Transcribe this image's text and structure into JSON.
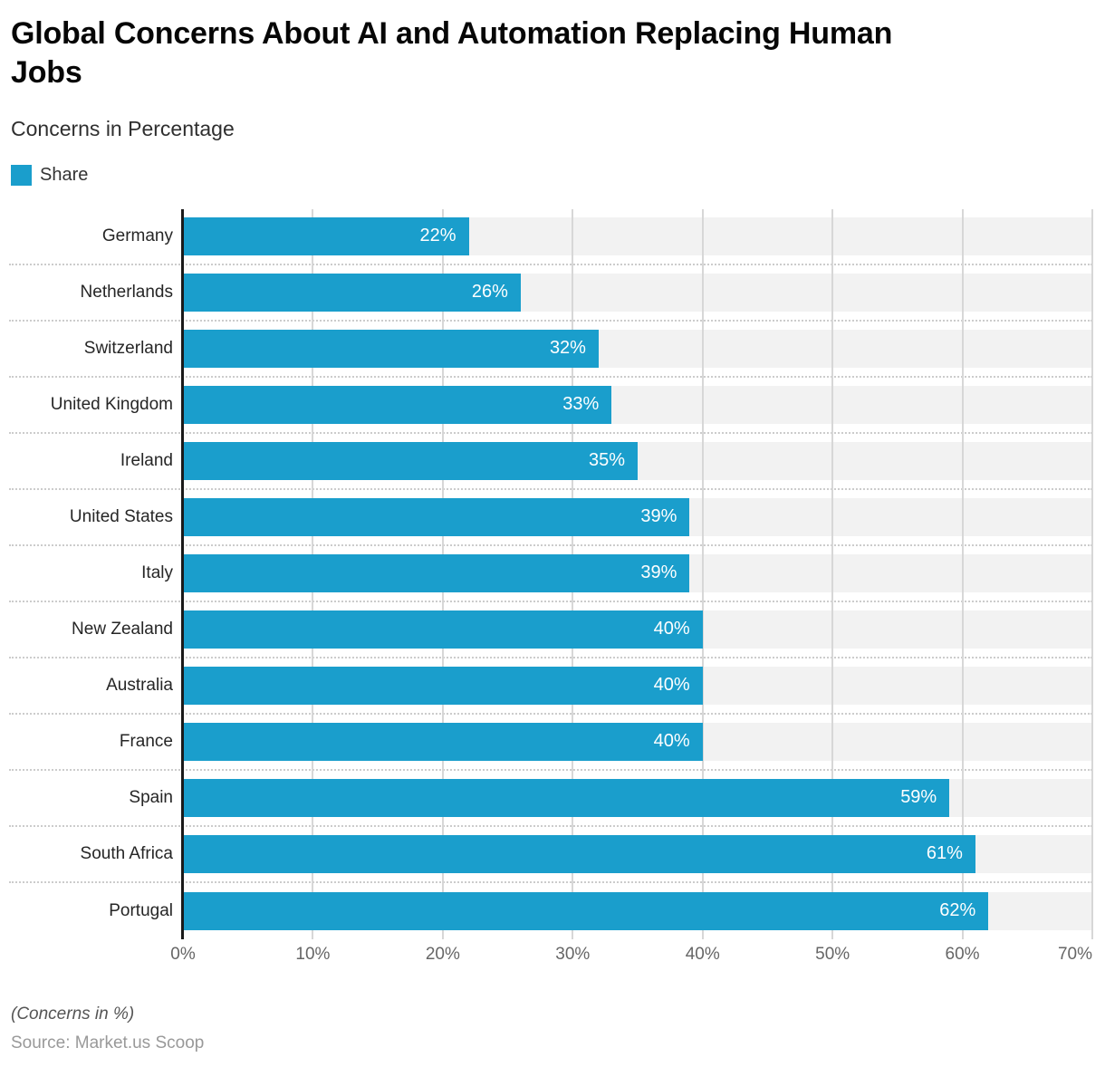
{
  "header": {
    "title_lines": [
      "Global Concerns About AI and Automation Replacing Human",
      "Jobs"
    ],
    "subtitle": "Concerns in Percentage"
  },
  "legend": {
    "label": "Share",
    "swatch_color": "#1A9ECC"
  },
  "chart_data": {
    "type": "bar",
    "orientation": "horizontal",
    "title": "Global Concerns About AI and Automation Replacing Human Jobs",
    "subtitle": "Concerns in Percentage",
    "series_name": "Share",
    "categories": [
      "Germany",
      "Netherlands",
      "Switzerland",
      "United Kingdom",
      "Ireland",
      "United States",
      "Italy",
      "New Zealand",
      "Australia",
      "France",
      "Spain",
      "South Africa",
      "Portugal"
    ],
    "values": [
      22,
      26,
      32,
      33,
      35,
      39,
      39,
      40,
      40,
      40,
      59,
      61,
      62
    ],
    "value_suffix": "%",
    "xlim": [
      0,
      70
    ],
    "x_ticks": [
      "0%",
      "10%",
      "20%",
      "30%",
      "40%",
      "50%",
      "60%",
      "70%"
    ],
    "grid": true,
    "legend_position": "top-left",
    "bar_color": "#1A9ECC",
    "track_color": "#F2F2F2",
    "gridline_color": "#D7D7D7",
    "axis_line_color": "#1A1A1A"
  },
  "footer": {
    "note": "(Concerns in %)",
    "source": "Source: Market.us Scoop"
  }
}
